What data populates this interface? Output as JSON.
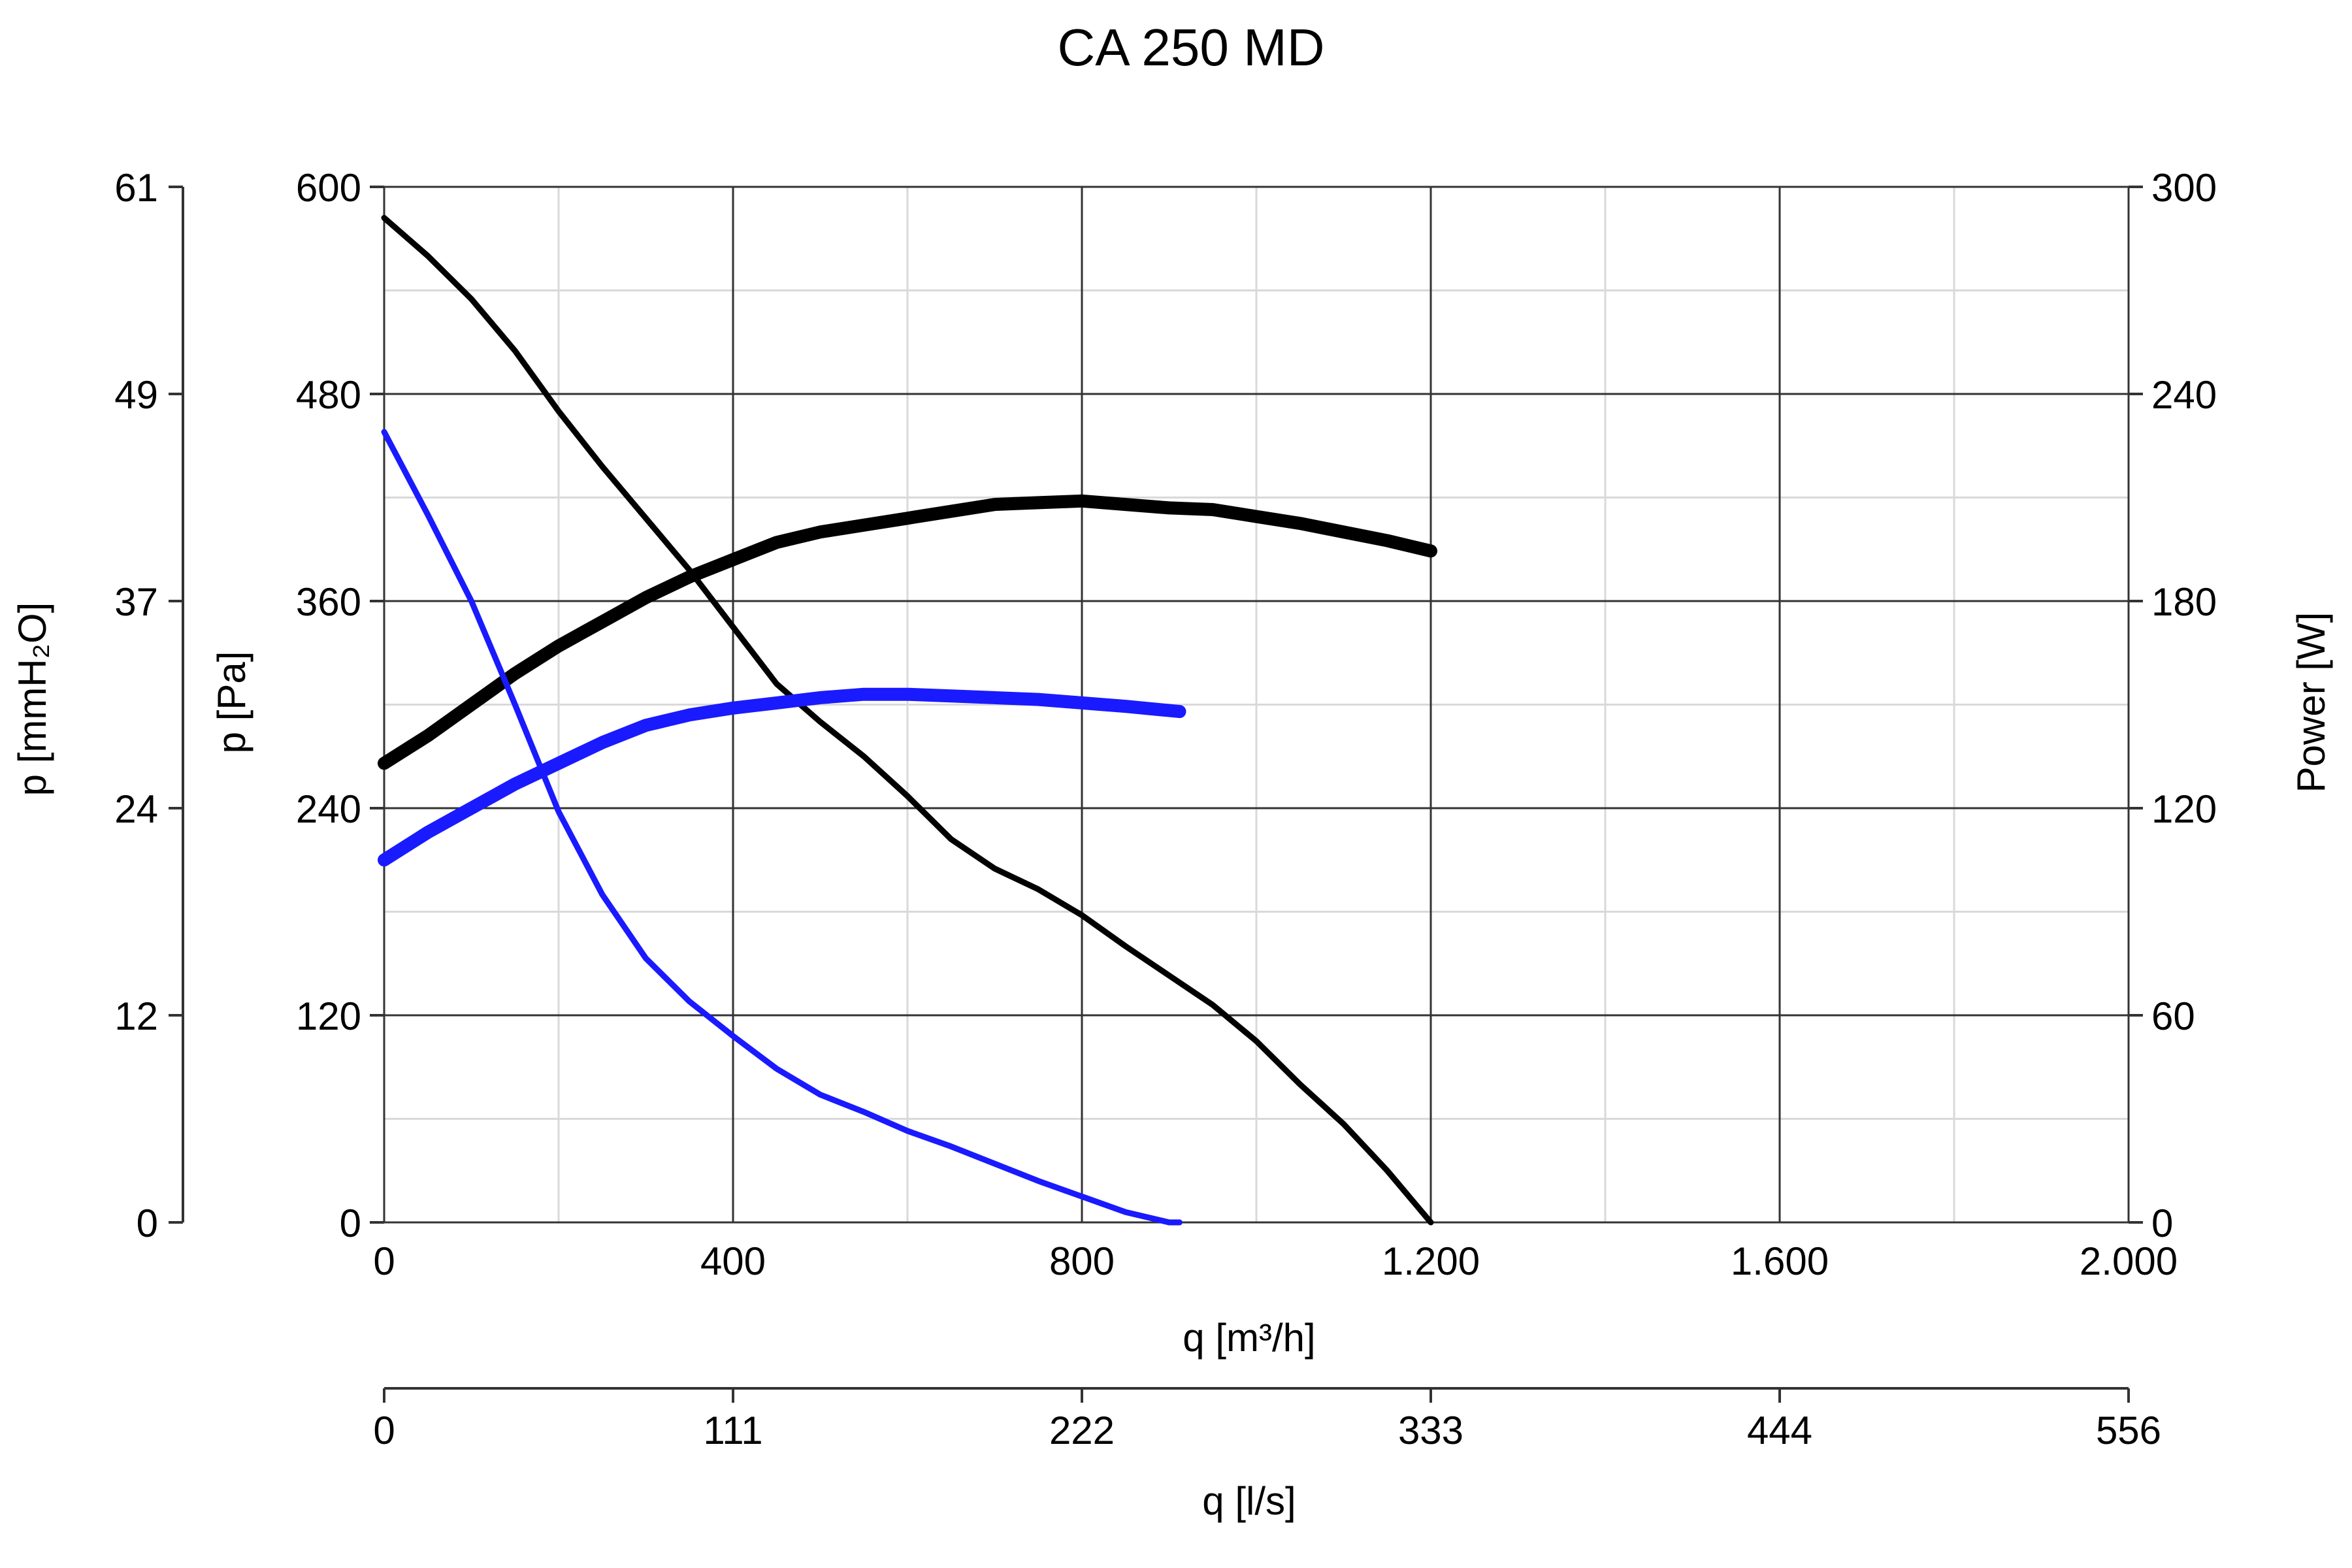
{
  "chart_data": {
    "type": "line",
    "title": "CA 250 MD",
    "x_axis": {
      "label": "q [m³/h]",
      "range": [
        0,
        2000
      ],
      "ticks": [
        0,
        400,
        800,
        1200,
        1600,
        2000
      ],
      "tick_labels": [
        "0",
        "400",
        "800",
        "1.200",
        "1.600",
        "2.000"
      ],
      "minor_step": 200
    },
    "x2_axis": {
      "label": "q [l/s]",
      "range": [
        0,
        556
      ],
      "tick_labels": [
        "0",
        "111",
        "222",
        "333",
        "444",
        "556"
      ]
    },
    "y_axis": {
      "label": "p [Pa]",
      "range": [
        0,
        600
      ],
      "ticks": [
        0,
        120,
        240,
        360,
        480,
        600
      ],
      "tick_labels": [
        "0",
        "120",
        "240",
        "360",
        "480",
        "600"
      ],
      "minor_step": 60
    },
    "y_axis_outer": {
      "label": "p [mmH₂O]",
      "range": [
        0,
        61
      ],
      "tick_labels": [
        "0",
        "12",
        "24",
        "37",
        "49",
        "61"
      ]
    },
    "y2_axis": {
      "label": "Power [W]",
      "range": [
        0,
        300
      ],
      "ticks": [
        0,
        60,
        120,
        180,
        240,
        300
      ],
      "tick_labels": [
        "0",
        "60",
        "120",
        "180",
        "240",
        "300"
      ]
    },
    "grid": true,
    "series": [
      {
        "axis": "left",
        "color": "#000000",
        "width": "thin",
        "x": [
          0,
          50,
          100,
          150,
          200,
          250,
          300,
          350,
          400,
          450,
          500,
          550,
          600,
          650,
          700,
          750,
          800,
          850,
          900,
          950,
          1000,
          1050,
          1100,
          1150,
          1200
        ],
        "y": [
          582,
          560,
          535,
          505,
          470,
          438,
          408,
          378,
          345,
          312,
          290,
          270,
          247,
          222,
          205,
          193,
          178,
          160,
          143,
          126,
          105,
          80,
          57,
          30,
          0
        ]
      },
      {
        "axis": "right",
        "color": "#000000",
        "width": "thick",
        "x": [
          0,
          50,
          100,
          150,
          200,
          250,
          300,
          350,
          400,
          450,
          500,
          550,
          600,
          650,
          700,
          750,
          800,
          850,
          900,
          950,
          1000,
          1050,
          1100,
          1150,
          1200
        ],
        "y": [
          133,
          141,
          150,
          159,
          167,
          174,
          181,
          187,
          192,
          197,
          200,
          202,
          204,
          206,
          208,
          208.5,
          209,
          208,
          207,
          206.5,
          204.5,
          202.5,
          200,
          197.5,
          194.5
        ]
      },
      {
        "axis": "left",
        "color": "#1a1aff",
        "width": "thin",
        "x": [
          0,
          50,
          100,
          150,
          200,
          250,
          300,
          350,
          400,
          450,
          500,
          550,
          600,
          650,
          700,
          750,
          800,
          850,
          900,
          912
        ],
        "y": [
          458,
          410,
          360,
          300,
          238,
          190,
          153,
          128,
          108,
          89,
          74,
          64,
          53,
          44,
          34,
          24,
          15,
          6,
          0,
          0
        ]
      },
      {
        "axis": "right",
        "color": "#1a1aff",
        "width": "thick",
        "x": [
          0,
          50,
          100,
          150,
          200,
          250,
          300,
          350,
          400,
          450,
          500,
          550,
          600,
          650,
          700,
          750,
          800,
          850,
          912
        ],
        "y": [
          105,
          113,
          120,
          127,
          133,
          139,
          144,
          147,
          149,
          150.5,
          152,
          153,
          153,
          152.5,
          152,
          151.5,
          150.5,
          149.5,
          148
        ]
      }
    ]
  }
}
